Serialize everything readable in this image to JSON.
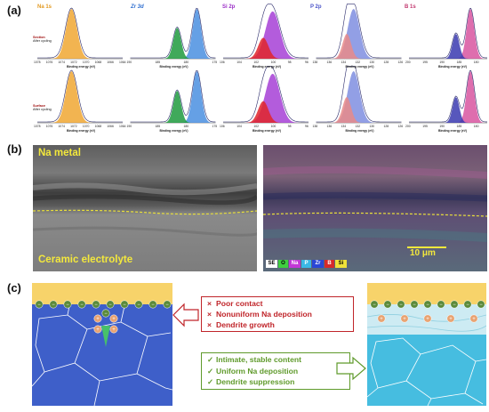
{
  "panels": {
    "a": "(a)",
    "b": "(b)",
    "c": "(c)"
  },
  "xps": {
    "titles": [
      "Na 1s",
      "Zr 3d",
      "Si 2p",
      "P 2p",
      "B 1s"
    ],
    "title_colors": [
      "#e29a23",
      "#2f6fd0",
      "#9b2fc7",
      "#4b54c9",
      "#c2386e"
    ],
    "row_labels": [
      {
        "line1": "Section",
        "line2": "After cycling"
      },
      {
        "line1": "Surface",
        "line2": "After cycling"
      }
    ],
    "axis_label": "Binding energy (eV)",
    "ticks": [
      [
        "1078",
        "1076",
        "1074",
        "1072",
        "1070",
        "1068",
        "1066",
        "1064"
      ],
      [
        "190",
        "185",
        "180",
        "175"
      ],
      [
        "106",
        "104",
        "102",
        "100",
        "98",
        "96"
      ],
      [
        "138",
        "136",
        "134",
        "132",
        "130",
        "128",
        "126"
      ],
      [
        "200",
        "195",
        "190",
        "185",
        "180",
        "175"
      ]
    ]
  },
  "sem": {
    "label_top": "Na metal",
    "label_bottom": "Ceramic electrolyte",
    "legend": [
      {
        "label": "SE",
        "color": "#ffffff",
        "text": "#000000"
      },
      {
        "label": "O",
        "color": "#3fcf3f",
        "text": "#000000"
      },
      {
        "label": "Na",
        "color": "#c238d6",
        "text": "#ffffff"
      },
      {
        "label": "P",
        "color": "#3ab8e6",
        "text": "#ffffff"
      },
      {
        "label": "Zr",
        "color": "#2a47d6",
        "text": "#ffffff"
      },
      {
        "label": "B",
        "color": "#d62a2a",
        "text": "#ffffff"
      },
      {
        "label": "Si",
        "color": "#efe23a",
        "text": "#000000"
      }
    ],
    "scale_bar": "10 μm"
  },
  "schematic": {
    "bad": [
      "Poor contact",
      "Nonuniform Na deposition",
      "Dendrite growth"
    ],
    "good": [
      "Intimate, stable content",
      "Uniform Na deposition",
      "Dendrite suppression"
    ],
    "bad_mark": "×",
    "good_mark": "✓",
    "na_minus": "−",
    "na_plus": "+"
  }
}
